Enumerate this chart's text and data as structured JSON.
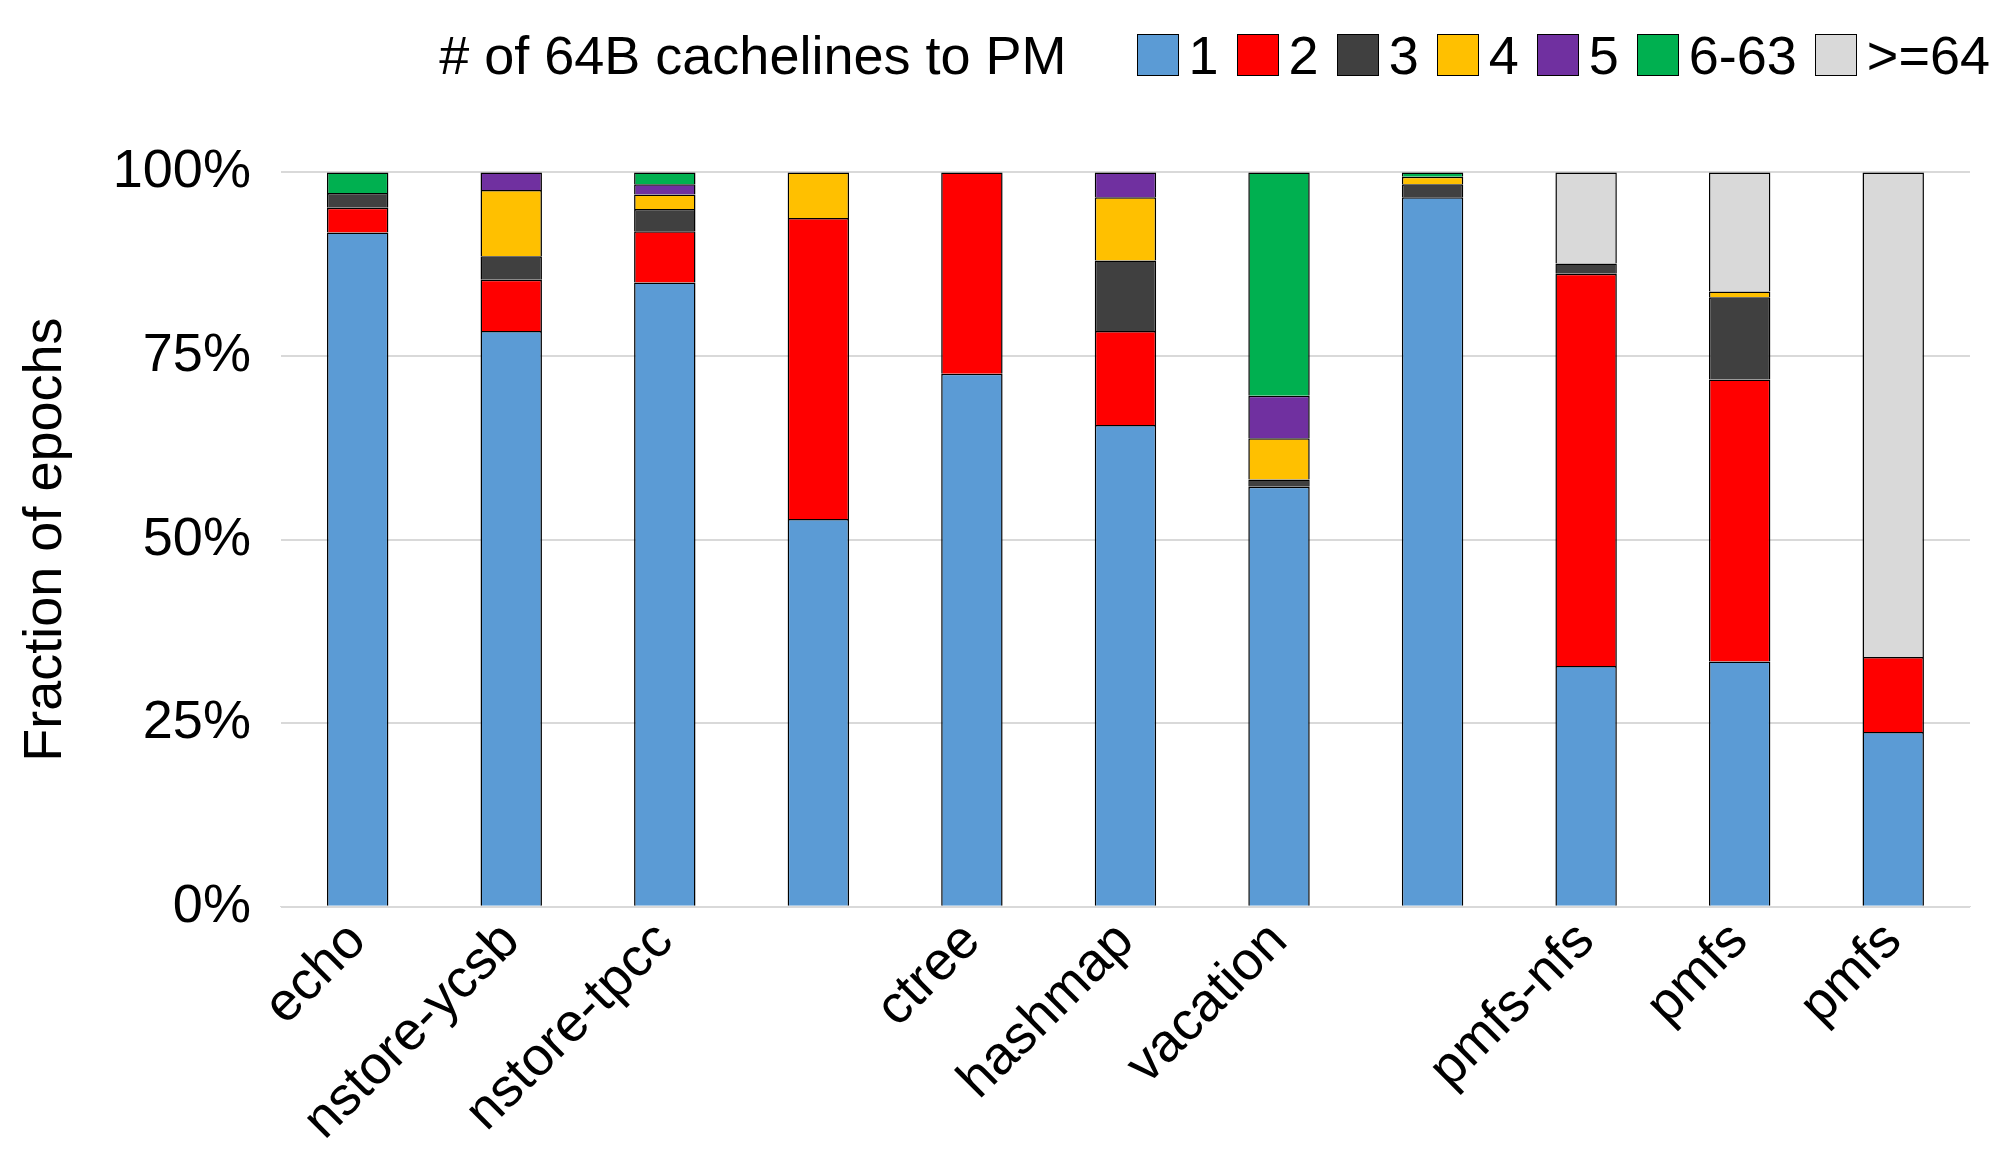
{
  "chart_data": {
    "type": "bar",
    "stacked": true,
    "legend_title": "# of 64B cachelines to PM",
    "legend": "top right",
    "ylabel": "Fraction of epochs",
    "grid": "y",
    "categories": [
      "echo",
      "nstore-ycsb",
      "nstore-tpcc",
      null,
      "ctree",
      "hashmap",
      "vacation",
      null,
      "pmfs-nfs",
      "pmfs",
      "pmfs"
    ],
    "ylim": [
      0,
      100
    ],
    "yticks": [
      {
        "value": 0,
        "label": "0%"
      },
      {
        "value": 25,
        "label": "25%"
      },
      {
        "value": 50,
        "label": "50%"
      },
      {
        "value": 75,
        "label": "75%"
      },
      {
        "value": 100,
        "label": "100%"
      }
    ],
    "series": [
      {
        "name": "1",
        "color": "#5b9bd5",
        "values": [
          91.8,
          78.4,
          85,
          52.8,
          72.6,
          65.6,
          57.2,
          96.6,
          32.8,
          33.4,
          23.8
        ]
      },
      {
        "name": "2",
        "color": "#ff0000",
        "values": [
          3.4,
          7,
          7,
          41,
          27.4,
          12.8,
          0,
          0,
          53.4,
          38.4,
          10.2
        ]
      },
      {
        "name": "3",
        "color": "#404040",
        "values": [
          2,
          3.2,
          3,
          0,
          0,
          9.6,
          1,
          1.8,
          1.4,
          11.2,
          0
        ]
      },
      {
        "name": "4",
        "color": "#ffc000",
        "values": [
          0,
          9,
          2,
          6.2,
          0,
          8.6,
          5.6,
          1,
          0,
          0.8,
          0
        ]
      },
      {
        "name": "5",
        "color": "#7030a0",
        "values": [
          0,
          2.4,
          1.4,
          0,
          0,
          3.4,
          5.8,
          0,
          0,
          0,
          0
        ]
      },
      {
        "name": "6-63",
        "color": "#00b050",
        "values": [
          2.8,
          0,
          1.6,
          0,
          0,
          0,
          30.4,
          0.6,
          0,
          0,
          0
        ]
      },
      {
        "name": ">=64",
        "color": "#d9d9d9",
        "values": [
          0,
          0,
          0,
          0,
          0,
          0,
          0,
          0,
          12.4,
          16.2,
          66
        ]
      }
    ]
  }
}
